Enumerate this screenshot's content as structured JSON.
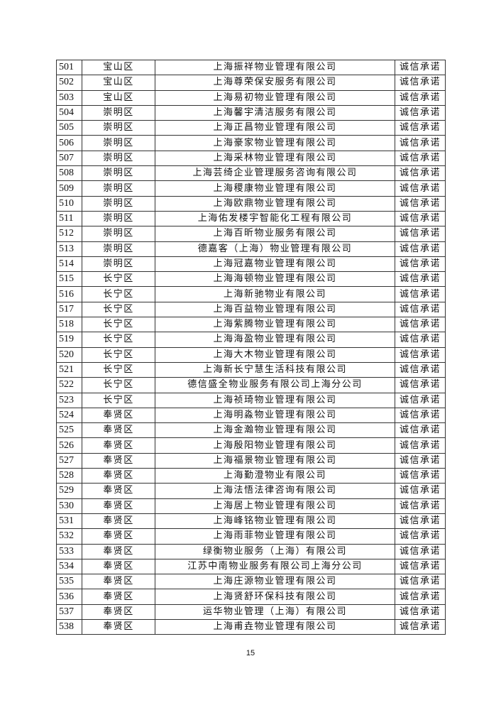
{
  "rows": [
    [
      "501",
      "宝山区",
      "上海振祥物业管理有限公司",
      "诚信承诺"
    ],
    [
      "502",
      "宝山区",
      "上海尊荣保安服务有限公司",
      "诚信承诺"
    ],
    [
      "503",
      "宝山区",
      "上海易初物业管理有限公司",
      "诚信承诺"
    ],
    [
      "504",
      "崇明区",
      "上海馨宇清洁服务有限公司",
      "诚信承诺"
    ],
    [
      "505",
      "崇明区",
      "上海正昌物业管理有限公司",
      "诚信承诺"
    ],
    [
      "506",
      "崇明区",
      "上海豪家物业管理有限公司",
      "诚信承诺"
    ],
    [
      "507",
      "崇明区",
      "上海采林物业管理有限公司",
      "诚信承诺"
    ],
    [
      "508",
      "崇明区",
      "上海芸绮企业管理服务咨询有限公司",
      "诚信承诺"
    ],
    [
      "509",
      "崇明区",
      "上海稷康物业管理有限公司",
      "诚信承诺"
    ],
    [
      "510",
      "崇明区",
      "上海欧鼎物业管理有限公司",
      "诚信承诺"
    ],
    [
      "511",
      "崇明区",
      "上海佑发楼宇智能化工程有限公司",
      "诚信承诺"
    ],
    [
      "512",
      "崇明区",
      "上海百昕物业服务有限公司",
      "诚信承诺"
    ],
    [
      "513",
      "崇明区",
      "德嘉客（上海）物业管理有限公司",
      "诚信承诺"
    ],
    [
      "514",
      "崇明区",
      "上海冠嘉物业管理有限公司",
      "诚信承诺"
    ],
    [
      "515",
      "长宁区",
      "上海海顿物业管理有限公司",
      "诚信承诺"
    ],
    [
      "516",
      "长宁区",
      "上海新驰物业有限公司",
      "诚信承诺"
    ],
    [
      "517",
      "长宁区",
      "上海百益物业管理有限公司",
      "诚信承诺"
    ],
    [
      "518",
      "长宁区",
      "上海紫腾物业管理有限公司",
      "诚信承诺"
    ],
    [
      "519",
      "长宁区",
      "上海海盈物业管理有限公司",
      "诚信承诺"
    ],
    [
      "520",
      "长宁区",
      "上海大木物业管理有限公司",
      "诚信承诺"
    ],
    [
      "521",
      "长宁区",
      "上海新长宁慧生活科技有限公司",
      "诚信承诺"
    ],
    [
      "522",
      "长宁区",
      "德信盛全物业服务有限公司上海分公司",
      "诚信承诺"
    ],
    [
      "523",
      "长宁区",
      "上海祯琦物业管理有限公司",
      "诚信承诺"
    ],
    [
      "524",
      "奉贤区",
      "上海明淼物业管理有限公司",
      "诚信承诺"
    ],
    [
      "525",
      "奉贤区",
      "上海金瀚物业管理有限公司",
      "诚信承诺"
    ],
    [
      "526",
      "奉贤区",
      "上海殷阳物业管理有限公司",
      "诚信承诺"
    ],
    [
      "527",
      "奉贤区",
      "上海福景物业管理有限公司",
      "诚信承诺"
    ],
    [
      "528",
      "奉贤区",
      "上海勤澄物业有限公司",
      "诚信承诺"
    ],
    [
      "529",
      "奉贤区",
      "上海法悟法律咨询有限公司",
      "诚信承诺"
    ],
    [
      "530",
      "奉贤区",
      "上海居上物业管理有限公司",
      "诚信承诺"
    ],
    [
      "531",
      "奉贤区",
      "上海峰铭物业管理有限公司",
      "诚信承诺"
    ],
    [
      "532",
      "奉贤区",
      "上海雨菲物业管理有限公司",
      "诚信承诺"
    ],
    [
      "533",
      "奉贤区",
      "绿衡物业服务（上海）有限公司",
      "诚信承诺"
    ],
    [
      "534",
      "奉贤区",
      "江苏中南物业服务有限公司上海分公司",
      "诚信承诺"
    ],
    [
      "535",
      "奉贤区",
      "上海庄源物业管理有限公司",
      "诚信承诺"
    ],
    [
      "536",
      "奉贤区",
      "上海贤舒环保科技有限公司",
      "诚信承诺"
    ],
    [
      "537",
      "奉贤区",
      "运华物业管理（上海）有限公司",
      "诚信承诺"
    ],
    [
      "538",
      "奉贤区",
      "上海甫垚物业管理有限公司",
      "诚信承诺"
    ]
  ],
  "page_number": "15"
}
